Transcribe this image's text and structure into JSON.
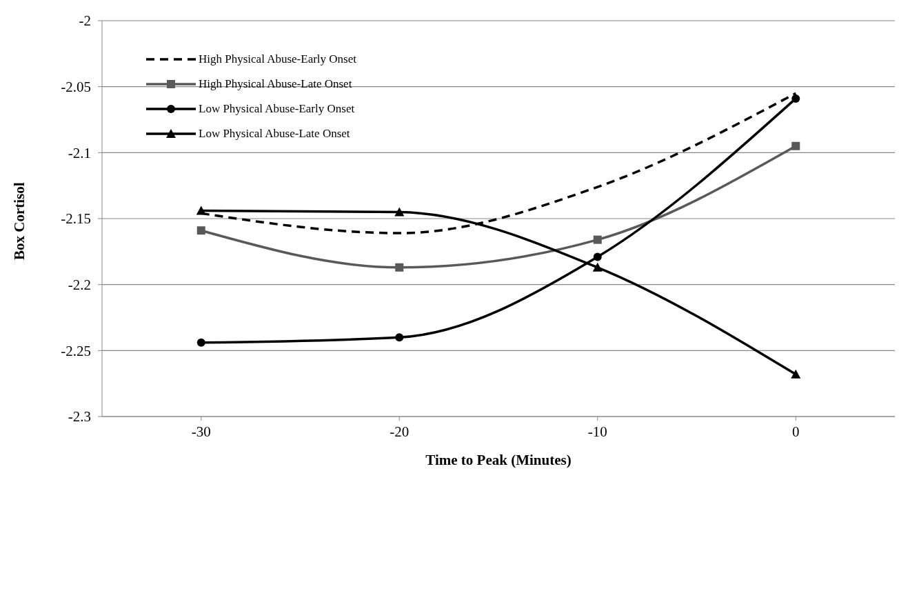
{
  "chart_data": {
    "type": "line",
    "xlabel": "Time to Peak (Minutes)",
    "ylabel": "Box Cortisol",
    "x": [
      -30,
      -20,
      -10,
      0
    ],
    "xlim": [
      -35,
      5
    ],
    "xticks": [
      -30,
      -20,
      -10,
      0
    ],
    "ylim": [
      -2.3,
      -2
    ],
    "yticks": [
      -2.3,
      -2.25,
      -2.2,
      -2.15,
      -2.1,
      -2.05,
      -2
    ],
    "grid": "y",
    "legend": "top left",
    "series": [
      {
        "name": "High Physical Abuse-Early Onset",
        "color": "#000000",
        "marker": "none",
        "line_style": "dashed",
        "values": [
          -2.146,
          -2.161,
          -2.126,
          -2.055
        ]
      },
      {
        "name": "High Physical Abuse-Late Onset",
        "color": "#595959",
        "marker": "square",
        "line_style": "solid",
        "values": [
          -2.159,
          -2.187,
          -2.166,
          -2.095
        ]
      },
      {
        "name": "Low Physical Abuse-Early Onset",
        "color": "#000000",
        "marker": "circle",
        "line_style": "solid",
        "values": [
          -2.244,
          -2.24,
          -2.179,
          -2.059
        ]
      },
      {
        "name": "Low Physical Abuse-Late Onset",
        "color": "#000000",
        "marker": "triangle",
        "line_style": "solid",
        "values": [
          -2.144,
          -2.145,
          -2.187,
          -2.268
        ]
      }
    ]
  }
}
